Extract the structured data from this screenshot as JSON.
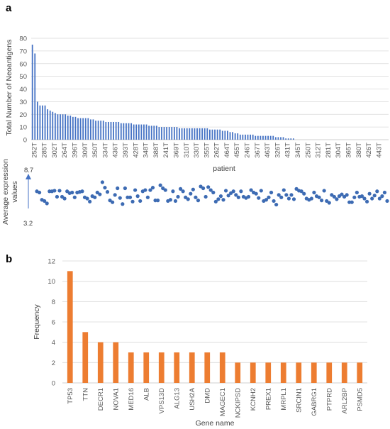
{
  "panels": {
    "a_letter": "a",
    "b_letter": "b"
  },
  "colors": {
    "blue": "#4472C4",
    "dot": "#3D6BB3",
    "orange": "#ED7D31",
    "grid": "#D9D9D9",
    "axis": "#BFBFBF"
  },
  "chart_data": [
    {
      "id": "a-top",
      "type": "bar",
      "title": "",
      "xlabel": "patient",
      "ylabel": "Total Number of Neoantigens",
      "ylim": [
        0,
        80
      ],
      "yticks": [
        0,
        10,
        20,
        30,
        40,
        50,
        60,
        70,
        80
      ],
      "grid": true,
      "tick_labels": [
        "252T",
        "285T",
        "302T",
        "264T",
        "396T",
        "309T",
        "350T",
        "334T",
        "436T",
        "393T",
        "428T",
        "348T",
        "388T",
        "241T",
        "369T",
        "310T",
        "330T",
        "355T",
        "262T",
        "464T",
        "455T",
        "246T",
        "367T",
        "463T",
        "326T",
        "431T",
        "345T",
        "250T",
        "312T",
        "281T",
        "304T",
        "365T",
        "380T",
        "426T",
        "443T"
      ],
      "values": [
        75,
        68,
        30,
        27,
        27,
        27,
        24,
        23,
        22,
        21,
        20,
        20,
        20,
        20,
        19,
        19,
        18,
        18,
        17,
        17,
        17,
        17,
        17,
        16,
        16,
        15,
        15,
        15,
        15,
        14,
        14,
        14,
        14,
        14,
        14,
        13,
        13,
        13,
        13,
        13,
        12,
        12,
        12,
        12,
        12,
        12,
        11,
        11,
        11,
        11,
        10,
        10,
        10,
        10,
        10,
        10,
        10,
        10,
        9,
        9,
        9,
        9,
        9,
        9,
        9,
        9,
        9,
        9,
        9,
        9,
        8,
        8,
        8,
        8,
        8,
        7,
        7,
        7,
        6,
        6,
        5,
        5,
        4,
        4,
        4,
        4,
        4,
        4,
        3,
        3,
        3,
        3,
        3,
        3,
        3,
        3,
        2,
        2,
        2,
        2,
        1,
        1,
        1,
        1,
        0,
        0,
        0,
        0,
        0,
        0,
        0,
        0,
        0,
        0,
        0,
        0,
        0,
        0,
        0,
        0,
        0,
        0,
        0,
        0,
        0,
        0,
        0,
        0,
        0,
        0,
        0,
        0,
        0,
        0,
        0,
        0,
        0,
        0,
        0,
        0,
        0
      ]
    },
    {
      "id": "a-bottom",
      "type": "scatter",
      "ylabel": "Average expression values",
      "ylabel_lines": [
        "Average expression",
        "values"
      ],
      "ymax_label": "8.7",
      "ymin_label": "3.2",
      "ylim": [
        3.2,
        8.7
      ],
      "values": [
        5.8,
        5.6,
        4.4,
        4.2,
        3.8,
        5.8,
        5.8,
        5.9,
        4.9,
        5.9,
        4.9,
        4.6,
        5.8,
        5.5,
        5.6,
        4.8,
        5.6,
        5.7,
        5.8,
        4.8,
        4.6,
        4.1,
        5.0,
        4.8,
        5.6,
        5.3,
        7.3,
        6.4,
        5.7,
        4.3,
        4.0,
        5.2,
        6.3,
        4.7,
        3.7,
        6.3,
        4.8,
        4.8,
        4.1,
        6.0,
        5.0,
        4.2,
        5.8,
        6.0,
        4.8,
        6.0,
        6.4,
        4.3,
        4.3,
        6.8,
        6.3,
        6.0,
        4.2,
        4.4,
        5.8,
        4.2,
        4.9,
        6.2,
        5.8,
        4.8,
        4.5,
        5.4,
        6.1,
        4.8,
        4.3,
        6.6,
        6.3,
        4.9,
        6.5,
        6.0,
        5.6,
        4.1,
        4.5,
        5.0,
        4.4,
        5.9,
        5.1,
        5.5,
        5.8,
        5.2,
        4.8,
        5.8,
        4.9,
        4.7,
        4.9,
        6.0,
        5.6,
        5.4,
        4.7,
        5.9,
        4.2,
        4.4,
        4.8,
        5.6,
        4.2,
        3.6,
        5.2,
        4.8,
        6.0,
        5.2,
        4.6,
        5.2,
        4.5,
        6.2,
        5.9,
        5.8,
        5.4,
        4.6,
        4.4,
        4.6,
        5.6,
        5.0,
        4.8,
        4.3,
        5.9,
        4.2,
        3.9,
        5.2,
        4.9,
        4.5,
        5.0,
        5.3,
        4.9,
        5.2,
        4.0,
        4.0,
        4.8,
        5.6,
        4.9,
        5.0,
        4.6,
        4.1,
        5.4,
        4.6,
        5.1,
        5.8,
        4.6,
        5.0,
        5.6,
        4.2
      ]
    },
    {
      "id": "b",
      "type": "bar",
      "title": "",
      "xlabel": "Gene name",
      "ylabel": "Frequency",
      "ylim": [
        0,
        12
      ],
      "yticks": [
        0,
        2,
        4,
        6,
        8,
        10,
        12
      ],
      "grid": true,
      "categories": [
        "TP53",
        "TTN",
        "DECR1",
        "NOVA1",
        "MED16",
        "ALB",
        "VPS13D",
        "ALG13",
        "USH2A",
        "DMD",
        "MAGEC1",
        "NCKIPSD",
        "KCNH2",
        "PREX1",
        "MRPL1",
        "SRCIN1",
        "GABRG1",
        "PTPRD",
        "ARL2BP",
        "PSMD5"
      ],
      "values": [
        11,
        5,
        4,
        4,
        3,
        3,
        3,
        3,
        3,
        3,
        3,
        2,
        2,
        2,
        2,
        2,
        2,
        2,
        2,
        2
      ]
    }
  ]
}
